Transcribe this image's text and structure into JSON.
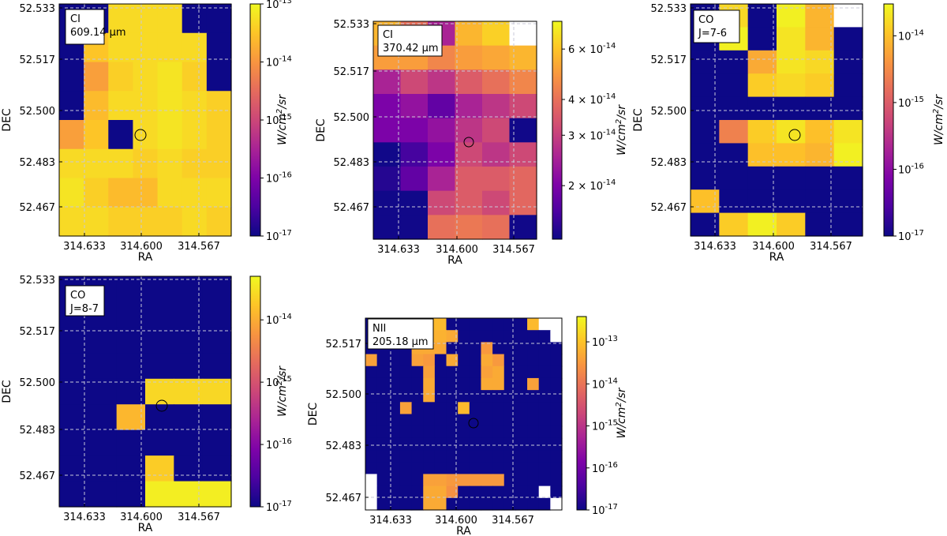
{
  "figure": {
    "ra_label": "RA",
    "dec_label": "DEC",
    "colorbar_label_html": "W/cm²/sr"
  },
  "colors": {
    "nan": "#ffffff",
    "grid": "#c8c8d8",
    "circle": "#000000"
  },
  "chart_data": [
    {
      "id": "ci_609",
      "type": "heatmap",
      "annotation": [
        "CI",
        "609.14 μm"
      ],
      "xlabel": "RA",
      "ylabel": "DEC",
      "xticks": [
        "314.633",
        "314.600",
        "314.567"
      ],
      "yticks": [
        "52.533",
        "52.517",
        "52.500",
        "52.483",
        "52.467"
      ],
      "colorbar": {
        "scale": "log",
        "range": [
          1e-17,
          1e-13
        ],
        "ticks": [
          "10^-13",
          "10^-14",
          "10^-15",
          "10^-16",
          "10^-17"
        ],
        "label": "W/cm²/sr"
      },
      "grid_log10": [
        [
          -17,
          -17,
          -13.3,
          -13.3,
          -13.3,
          -17,
          -17
        ],
        [
          -17,
          -13.5,
          -13.3,
          -13.3,
          -13.3,
          -13.3,
          -17
        ],
        [
          -17,
          -13.9,
          -13.4,
          -13.3,
          -13.2,
          -13.4,
          -17
        ],
        [
          -17,
          -13.6,
          -13.3,
          -13.3,
          -13.2,
          -13.3,
          -13.4
        ],
        [
          -13.9,
          -13.5,
          -17,
          -13.3,
          -13.2,
          -13.3,
          -13.4
        ],
        [
          -13.3,
          -13.3,
          -13.3,
          -13.4,
          -13.3,
          -13.4,
          -13.4
        ],
        [
          -13.2,
          -13.4,
          -13.6,
          -13.6,
          -13.3,
          -13.3,
          -13.3
        ],
        [
          -13.3,
          -13.3,
          -13.4,
          -13.4,
          -13.4,
          -13.3,
          -13.4
        ]
      ]
    },
    {
      "id": "ci_370",
      "type": "heatmap",
      "annotation": [
        "CI",
        "370.42 μm"
      ],
      "xlabel": "RA",
      "ylabel": "DEC",
      "xticks": [
        "314.633",
        "314.600",
        "314.567"
      ],
      "yticks": [
        "52.533",
        "52.517",
        "52.500",
        "52.483",
        "52.467"
      ],
      "colorbar": {
        "scale": "log",
        "range": [
          1.3e-14,
          7.5e-14
        ],
        "ticks": [
          "6 × 10^-14",
          "4 × 10^-14",
          "3 × 10^-14",
          "2 × 10^-14"
        ],
        "label": "W/cm²/sr"
      },
      "grid_log10": [
        [
          -13.25,
          -13.4,
          -13.6,
          -13.25,
          -13.2,
          null
        ],
        [
          -13.3,
          -13.3,
          -13.35,
          -13.3,
          -13.28,
          -13.25
        ],
        [
          -13.6,
          -13.5,
          -13.55,
          -13.45,
          -13.4,
          -13.35
        ],
        [
          -13.7,
          -13.65,
          -13.75,
          -13.6,
          -13.55,
          -13.5
        ],
        [
          -13.7,
          -13.7,
          -13.65,
          -13.55,
          -13.5,
          -13.88
        ],
        [
          -13.88,
          -13.8,
          -13.7,
          -13.5,
          -13.55,
          -13.5
        ],
        [
          -13.85,
          -13.75,
          -13.6,
          -13.45,
          -13.45,
          -13.42
        ],
        [
          -13.88,
          -13.88,
          -13.5,
          -13.45,
          -13.5,
          -13.42
        ],
        [
          -13.88,
          -13.88,
          -13.4,
          -13.38,
          -13.4,
          -13.88
        ]
      ]
    },
    {
      "id": "co_76",
      "type": "heatmap",
      "annotation": [
        "CO",
        "J=7-6"
      ],
      "xlabel": "RA",
      "ylabel": "DEC",
      "xticks": [
        "314.633",
        "314.600",
        "314.567"
      ],
      "yticks": [
        "52.533",
        "52.517",
        "52.500",
        "52.483",
        "52.467"
      ],
      "colorbar": {
        "scale": "log",
        "range": [
          1e-17,
          3e-14
        ],
        "ticks": [
          "10^-14",
          "10^-15",
          "10^-16",
          "10^-17"
        ],
        "label": "W/cm²/sr"
      },
      "grid_log10": [
        [
          -17,
          -13.8,
          -17,
          -13.6,
          -14.1,
          null
        ],
        [
          -17,
          -13.6,
          -17,
          -13.7,
          -14.1,
          -17
        ],
        [
          -17,
          -17,
          -14.2,
          -13.7,
          -13.8,
          -17
        ],
        [
          -17,
          -17,
          -13.9,
          -13.8,
          -13.9,
          -17
        ],
        [
          -17,
          -17,
          -17,
          -17,
          -17,
          -17
        ],
        [
          -17,
          -14.6,
          -13.9,
          -13.7,
          -14.0,
          -13.7
        ],
        [
          -17,
          -17,
          -14.0,
          -14.0,
          -14.1,
          -13.6
        ],
        [
          -17,
          -17,
          -17,
          -17,
          -17,
          -17
        ],
        [
          -14.0,
          -17,
          -17,
          -17,
          -17,
          -17
        ],
        [
          -17,
          -13.9,
          -13.6,
          -13.9,
          -17,
          -17
        ]
      ]
    },
    {
      "id": "co_87",
      "type": "heatmap",
      "annotation": [
        "CO",
        "J=8-7"
      ],
      "xlabel": "RA",
      "ylabel": "DEC",
      "xticks": [
        "314.633",
        "314.600",
        "314.567"
      ],
      "yticks": [
        "52.533",
        "52.517",
        "52.500",
        "52.483",
        "52.467"
      ],
      "colorbar": {
        "scale": "log",
        "range": [
          1e-17,
          5e-14
        ],
        "ticks": [
          "10^-14",
          "10^-15",
          "10^-16",
          "10^-17"
        ],
        "label": "W/cm²/sr"
      },
      "grid_log10": [
        [
          -17,
          -17,
          -17,
          -17,
          -17,
          -17
        ],
        [
          -17,
          -17,
          -17,
          -17,
          -17,
          -17
        ],
        [
          -17,
          -17,
          -17,
          -17,
          -17,
          -17
        ],
        [
          -17,
          -17,
          -17,
          -17,
          -17,
          -17
        ],
        [
          -17,
          -17,
          -17,
          -13.6,
          -13.6,
          -13.6
        ],
        [
          -17,
          -17,
          -13.9,
          -17,
          -17,
          -17
        ],
        [
          -17,
          -17,
          -17,
          -17,
          -17,
          -17
        ],
        [
          -17,
          -17,
          -17,
          -13.7,
          -17,
          -17
        ],
        [
          -17,
          -17,
          -17,
          -13.4,
          -13.4,
          -13.4
        ]
      ]
    },
    {
      "id": "nii_205",
      "type": "heatmap",
      "annotation": [
        "NII",
        "205.18 μm"
      ],
      "xlabel": "RA",
      "ylabel": "DEC",
      "xticks": [
        "314.633",
        "314.600",
        "314.567"
      ],
      "yticks": [
        "52.517",
        "52.500",
        "52.483",
        "52.467"
      ],
      "colorbar": {
        "scale": "log",
        "range": [
          1e-17,
          4e-13
        ],
        "ticks": [
          "10^-13",
          "10^-14",
          "10^-15",
          "10^-16",
          "10^-17"
        ],
        "label": "W/cm²/sr"
      },
      "grid_log10": [
        [
          -17,
          -17,
          -17,
          -17,
          -13.2,
          -13.1,
          -13.1,
          -17,
          -17,
          -17,
          -17,
          -17,
          -17,
          -17,
          -13.1,
          null,
          null
        ],
        [
          -17,
          -17,
          -17,
          -17,
          -13.4,
          -13.2,
          -13.2,
          -13.3,
          -17,
          -17,
          -17,
          -17,
          -17,
          -17,
          -17,
          -17,
          null
        ],
        [
          -17,
          -17,
          -17,
          -17,
          -13.3,
          -13.3,
          -13.3,
          -17,
          -17,
          -17,
          -13.5,
          -17,
          -17,
          -17,
          -17,
          -17,
          -17
        ],
        [
          -13.4,
          -17,
          -17,
          -17,
          -13.4,
          -13.5,
          -17,
          -13.3,
          -17,
          -17,
          -13.3,
          -13.5,
          -17,
          -17,
          -17,
          -17,
          -17
        ],
        [
          -17,
          -17,
          -17,
          -17,
          -17,
          -13.4,
          -17,
          -17,
          -17,
          -17,
          -13.4,
          -13.3,
          -17,
          -17,
          -17,
          -17,
          -17
        ],
        [
          -17,
          -17,
          -17,
          -17,
          -17,
          -13.3,
          -17,
          -17,
          -17,
          -17,
          -13.3,
          -13.3,
          -17,
          -17,
          -13.4,
          -17,
          -17
        ],
        [
          -17,
          -17,
          -17,
          -17,
          -17,
          -13.3,
          -17,
          -17,
          -17,
          -17,
          -17,
          -17,
          -17,
          -17,
          -17,
          -17,
          -17
        ],
        [
          -17,
          -17,
          -17,
          -13.4,
          -17,
          -17,
          -17,
          -17,
          -13.1,
          -17,
          -17,
          -17,
          -17,
          -17,
          -17,
          -17,
          -17
        ],
        [
          -17,
          -17,
          -17,
          -17,
          -17,
          -17,
          -17,
          -17,
          -17,
          -17,
          -17,
          -17,
          -17,
          -17,
          -17,
          -17,
          -17
        ],
        [
          -17,
          -17,
          -17,
          -17,
          -17,
          -17,
          -17,
          -17,
          -17,
          -17,
          -17,
          -17,
          -17,
          -17,
          -17,
          -17,
          -17
        ],
        [
          -17,
          -17,
          -17,
          -17,
          -17,
          -17,
          -17,
          -17,
          -17,
          -17,
          -17,
          -17,
          -17,
          -17,
          -17,
          -17,
          -17
        ],
        [
          -17,
          -17,
          -17,
          -17,
          -17,
          -17,
          -17,
          -17,
          -17,
          -17,
          -17,
          -17,
          -17,
          -17,
          -17,
          -17,
          -17
        ],
        [
          -17,
          -17,
          -17,
          -17,
          -17,
          -17,
          -17,
          -17,
          -17,
          -17,
          -17,
          -17,
          -17,
          -17,
          -17,
          -17,
          -17
        ],
        [
          null,
          -17,
          -17,
          -17,
          -17,
          -13.4,
          -13.4,
          -13.5,
          -13.5,
          -13.5,
          -13.5,
          -13.5,
          -17,
          -17,
          -17,
          -17,
          -17
        ],
        [
          null,
          -17,
          -17,
          -17,
          -17,
          -13.3,
          -13.3,
          -13.6,
          -17,
          -17,
          -17,
          -17,
          -17,
          -17,
          -17,
          null,
          -17
        ],
        [
          null,
          -17,
          -17,
          -17,
          -17,
          -13.3,
          -13.3,
          -17,
          -17,
          -17,
          -17,
          -17,
          -17,
          -17,
          -17,
          -17,
          null
        ]
      ]
    }
  ]
}
